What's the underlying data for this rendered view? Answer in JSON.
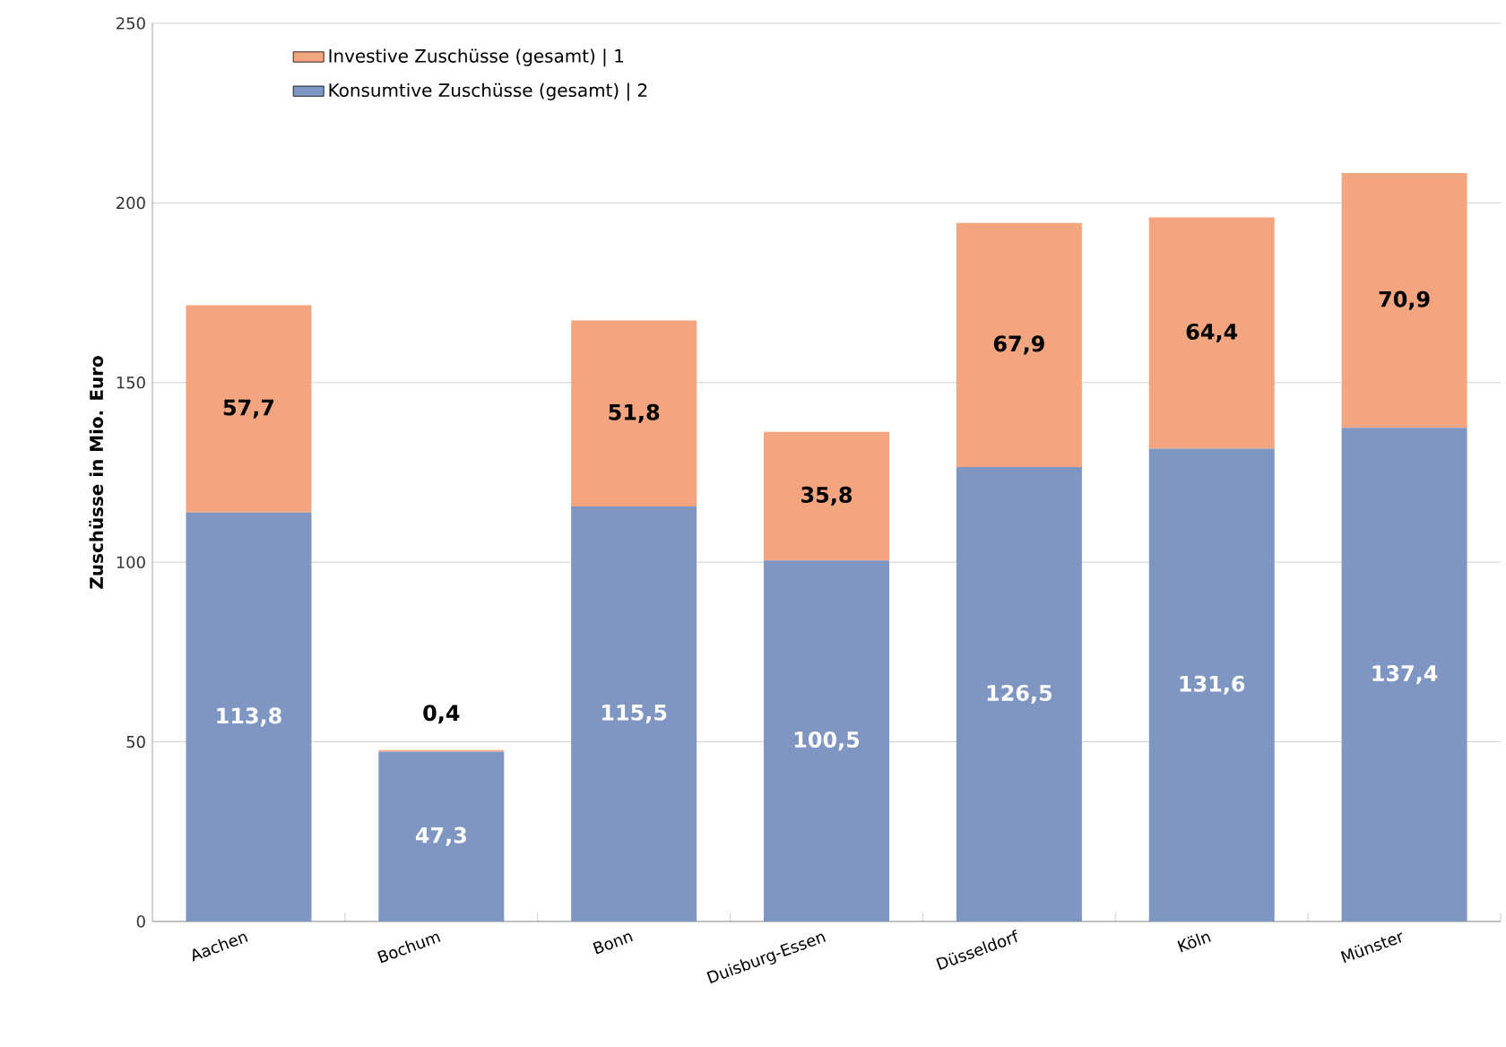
{
  "chart_data": {
    "type": "bar",
    "stacked": true,
    "ylabel": "Zuschüsse in Mio. Euro",
    "categories": [
      "Aachen",
      "Bochum",
      "Bonn",
      "Duisburg-Essen",
      "Düsseldorf",
      "Köln",
      "Münster"
    ],
    "series": [
      {
        "name": "Konsumtive Zuschüsse (gesamt)  | 2",
        "color": "#7f96c2",
        "values": [
          113.8,
          47.3,
          115.5,
          100.5,
          126.5,
          131.6,
          137.4
        ],
        "value_labels": [
          "113,8",
          "47,3",
          "115,5",
          "100,5",
          "126,5",
          "131,6",
          "137,4"
        ]
      },
      {
        "name": "Investive Zuschüsse (gesamt)  | 1",
        "color": "#f2a57e",
        "values": [
          57.7,
          0.4,
          51.8,
          35.8,
          67.9,
          64.4,
          70.9
        ],
        "value_labels": [
          "57,7",
          "0,4",
          "51,8",
          "35,8",
          "67,9",
          "64,4",
          "70,9"
        ]
      }
    ],
    "ylim": [
      0,
      250
    ],
    "yticks": [
      0,
      50,
      100,
      150,
      200,
      250
    ],
    "grid": "y",
    "legend": "top left"
  }
}
